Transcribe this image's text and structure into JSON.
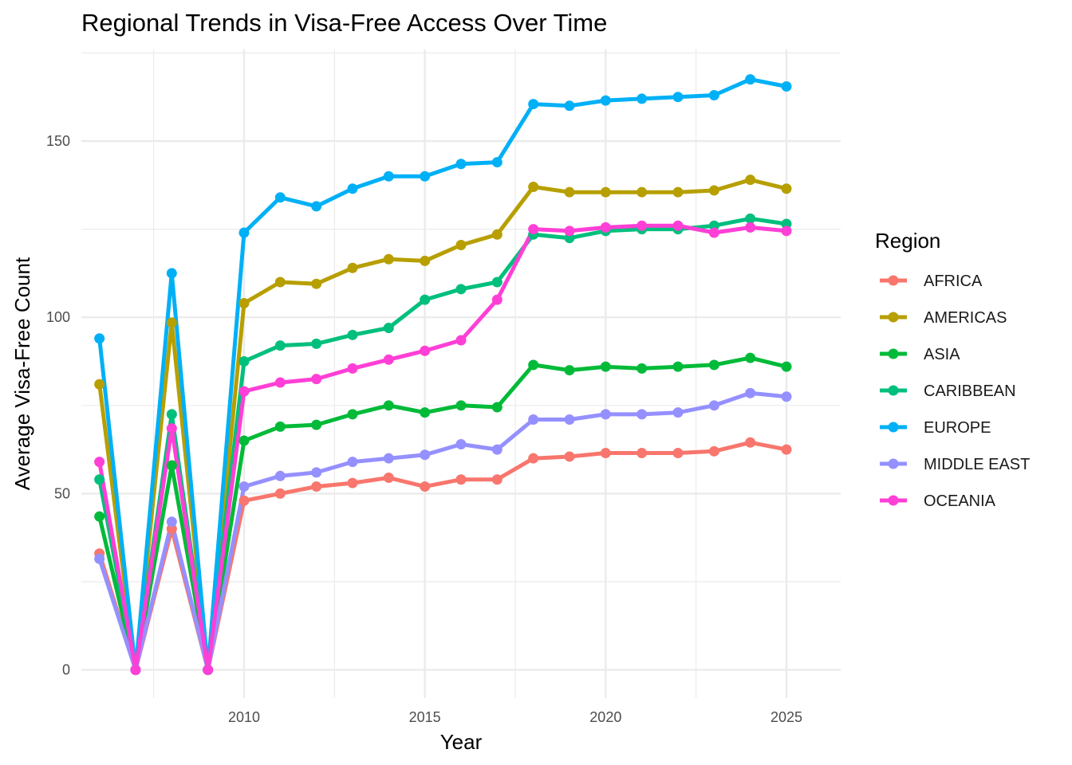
{
  "chart_data": {
    "type": "line",
    "title": "Regional Trends in Visa-Free Access Over Time",
    "xlabel": "Year",
    "ylabel": "Average Visa-Free Count",
    "xlim": [
      2005.5,
      2026.5
    ],
    "ylim": [
      -8,
      176
    ],
    "x_ticks": [
      2010,
      2015,
      2020,
      2025
    ],
    "x_tick_labels": [
      "2010",
      "2015",
      "2020",
      "2025"
    ],
    "y_ticks": [
      0,
      50,
      100,
      150
    ],
    "y_tick_labels": [
      "0",
      "50",
      "100",
      "150"
    ],
    "grid": true,
    "legend_title": "Region",
    "legend_position": "right",
    "x": [
      2006,
      2007,
      2008,
      2009,
      2010,
      2011,
      2012,
      2013,
      2014,
      2015,
      2016,
      2017,
      2018,
      2019,
      2020,
      2021,
      2022,
      2023,
      2024,
      2025
    ],
    "series": [
      {
        "name": "AFRICA",
        "color": "#F8766D",
        "values": [
          33,
          0,
          40,
          0,
          48,
          50,
          52,
          53,
          54.5,
          52,
          54,
          54,
          60,
          60.5,
          61.5,
          61.5,
          61.5,
          62,
          64.5,
          62.5
        ]
      },
      {
        "name": "AMERICAS",
        "color": "#B79F00",
        "values": [
          81,
          0,
          98.5,
          0,
          104,
          110,
          109.5,
          114,
          116.5,
          116,
          120.5,
          123.5,
          137,
          135.5,
          135.5,
          135.5,
          135.5,
          136,
          139,
          136.5
        ]
      },
      {
        "name": "ASIA",
        "color": "#00BA38",
        "values": [
          43.5,
          0,
          58,
          0,
          65,
          69,
          69.5,
          72.5,
          75,
          73,
          75,
          74.5,
          86.5,
          85,
          86,
          85.5,
          86,
          86.5,
          88.5,
          86
        ]
      },
      {
        "name": "CARIBBEAN",
        "color": "#00BF7D",
        "values": [
          54,
          0,
          72.5,
          0,
          87.5,
          92,
          92.5,
          95,
          97,
          105,
          108,
          110,
          123.5,
          122.5,
          124.5,
          125,
          125,
          126,
          128,
          126.5
        ]
      },
      {
        "name": "EUROPE",
        "color": "#00B0F6",
        "values": [
          94,
          0,
          112.5,
          0,
          124,
          134,
          131.5,
          136.5,
          140,
          140,
          143.5,
          144,
          160.5,
          160,
          161.5,
          162,
          162.5,
          163,
          167.5,
          165.5
        ]
      },
      {
        "name": "MIDDLE EAST",
        "color": "#9590FF",
        "values": [
          31.5,
          0,
          42,
          0,
          52,
          55,
          56,
          59,
          60,
          61,
          64,
          62.5,
          71,
          71,
          72.5,
          72.5,
          73,
          75,
          78.5,
          77.5
        ]
      },
      {
        "name": "OCEANIA",
        "color": "#FF3FD6",
        "values": [
          59,
          0,
          68.5,
          0,
          79,
          81.5,
          82.5,
          85.5,
          88,
          90.5,
          93.5,
          105,
          125,
          124.5,
          125.5,
          126,
          126,
          124,
          125.5,
          124.5
        ]
      }
    ]
  }
}
